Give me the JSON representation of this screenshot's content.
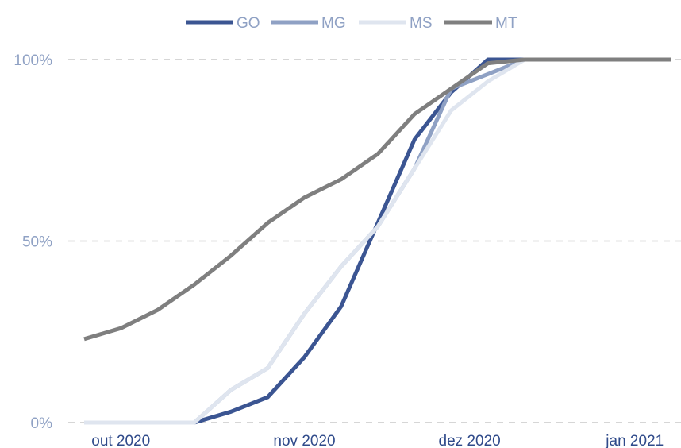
{
  "chart_data": {
    "type": "line",
    "title": "",
    "xlabel": "",
    "ylabel": "",
    "x_tick_labels": [
      "out 2020",
      "nov 2020",
      "dez 2020",
      "jan 2021"
    ],
    "x_tick_weeks": [
      1,
      6,
      10.5,
      15
    ],
    "y_tick_labels": [
      "100%",
      "50%",
      "0%"
    ],
    "y_tick_values": [
      100,
      50,
      0
    ],
    "xlim": [
      0,
      16
    ],
    "ylim": [
      0,
      100
    ],
    "grid": "horizontal dashed",
    "legend_position": "top-center",
    "x": [
      0,
      1,
      2,
      3,
      4,
      5,
      6,
      7,
      8,
      9,
      10,
      11,
      12,
      13,
      14,
      15,
      16
    ],
    "series": [
      {
        "name": "GO",
        "color": "#3b5592",
        "values": [
          0,
          0,
          0,
          0,
          3,
          7,
          18,
          32,
          55,
          78,
          91,
          100,
          100,
          100,
          100,
          100,
          100
        ]
      },
      {
        "name": "MG",
        "color": "#8fa1c4",
        "values": [
          0,
          0,
          0,
          0,
          9,
          15,
          30,
          43,
          54,
          70,
          92,
          96,
          100,
          100,
          100,
          100,
          100
        ]
      },
      {
        "name": "MS",
        "color": "#dfe5ef",
        "values": [
          0,
          0,
          0,
          0,
          9,
          15,
          30,
          43,
          54,
          70,
          86,
          94,
          100,
          100,
          100,
          100,
          100
        ]
      },
      {
        "name": "MT",
        "color": "#7f7f7f",
        "values": [
          23,
          26,
          31,
          38,
          46,
          55,
          62,
          67,
          74,
          85,
          92,
          99,
          100,
          100,
          100,
          100,
          100
        ]
      }
    ]
  }
}
